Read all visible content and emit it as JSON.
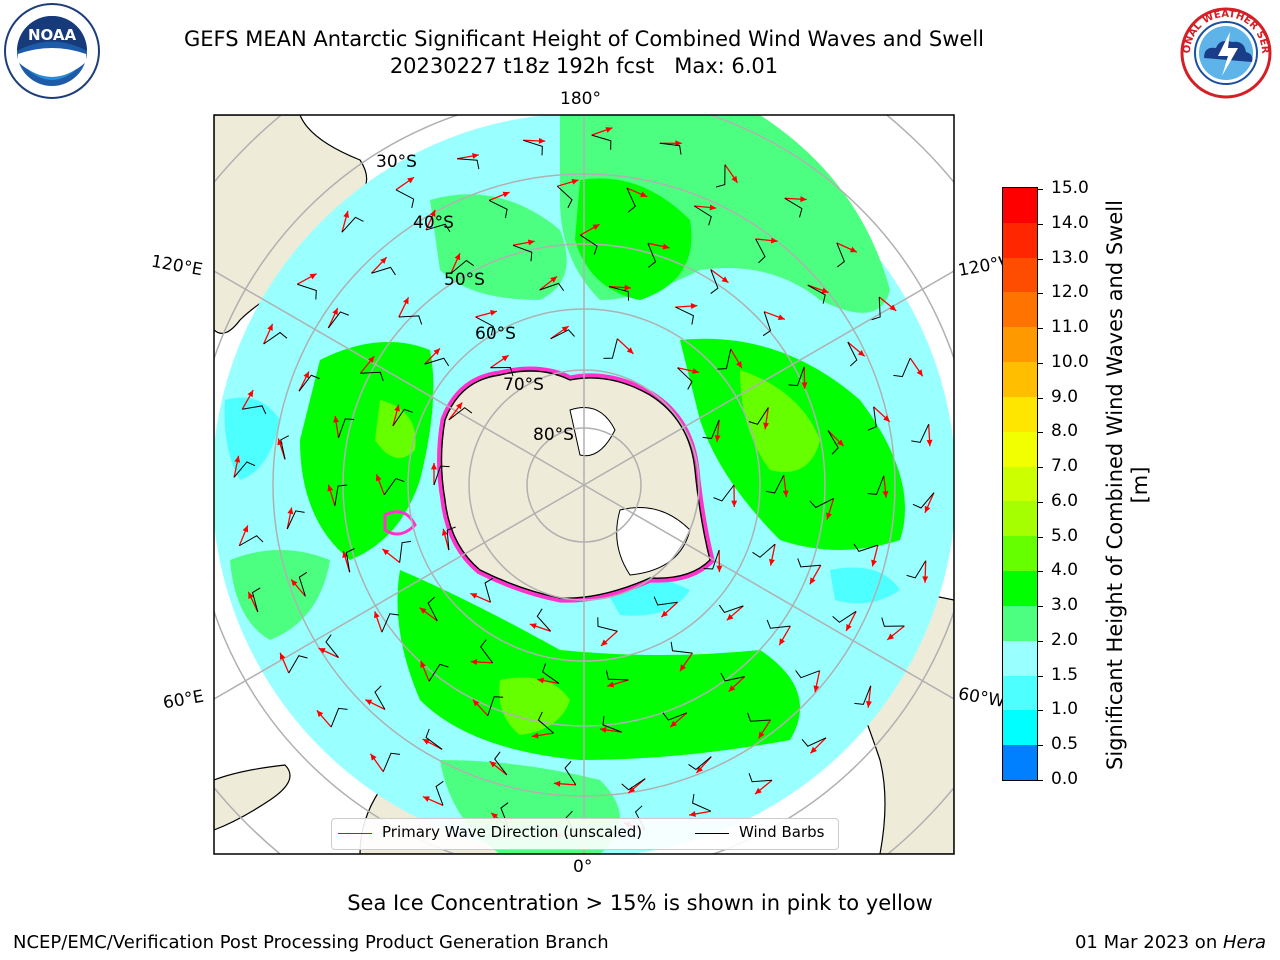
{
  "header": {
    "title_line1": "GEFS MEAN Antarctic Significant Height of Combined Wind Waves and Swell",
    "title_line2": "20230227 t18z 192h fcst   Max: 6.01"
  },
  "logos": {
    "left": {
      "name": "NOAA",
      "ring_text": "NATIONAL OCEANIC AND ATMOSPHERIC ADMINISTRATION · U.S. DEPARTMENT OF COMMERCE"
    },
    "right": {
      "ring_text": "NATIONAL WEATHER SERVICE"
    }
  },
  "map": {
    "longitude_labels": [
      "180°",
      "120°E",
      "120°W",
      "60°E",
      "60°W",
      "0°"
    ],
    "latitude_labels": [
      "30°S",
      "40°S",
      "50°S",
      "60°S",
      "70°S",
      "80°S"
    ],
    "legend": {
      "primary_wave": "Primary Wave Direction (unscaled)",
      "wind_barbs": "Wind Barbs"
    }
  },
  "colorbar": {
    "label": "Significant Height of Combined Wind Waves and Swell [m]",
    "ticks": [
      "15.0",
      "14.0",
      "13.0",
      "12.0",
      "11.0",
      "10.0",
      "9.0",
      "8.0",
      "7.0",
      "6.0",
      "5.0",
      "4.0",
      "3.0",
      "2.0",
      "1.5",
      "1.0",
      "0.5",
      "0.0"
    ],
    "colors": [
      "#ff0000",
      "#ff2600",
      "#ff4d00",
      "#ff7300",
      "#ff9900",
      "#ffbf00",
      "#ffe600",
      "#f2ff00",
      "#ccff00",
      "#a6ff00",
      "#66ff00",
      "#00ff00",
      "#4dff80",
      "#99ffff",
      "#4dffff",
      "#00ffff",
      "#0080ff",
      "#0000ff"
    ]
  },
  "notes": {
    "sea_ice": "Sea Ice Concentration > 15% is shown in pink to yellow"
  },
  "footer": {
    "left": "NCEP/EMC/Verification Post Processing Product Generation Branch",
    "right_date": "01 Mar 2023 on ",
    "right_host": "Hera"
  }
}
